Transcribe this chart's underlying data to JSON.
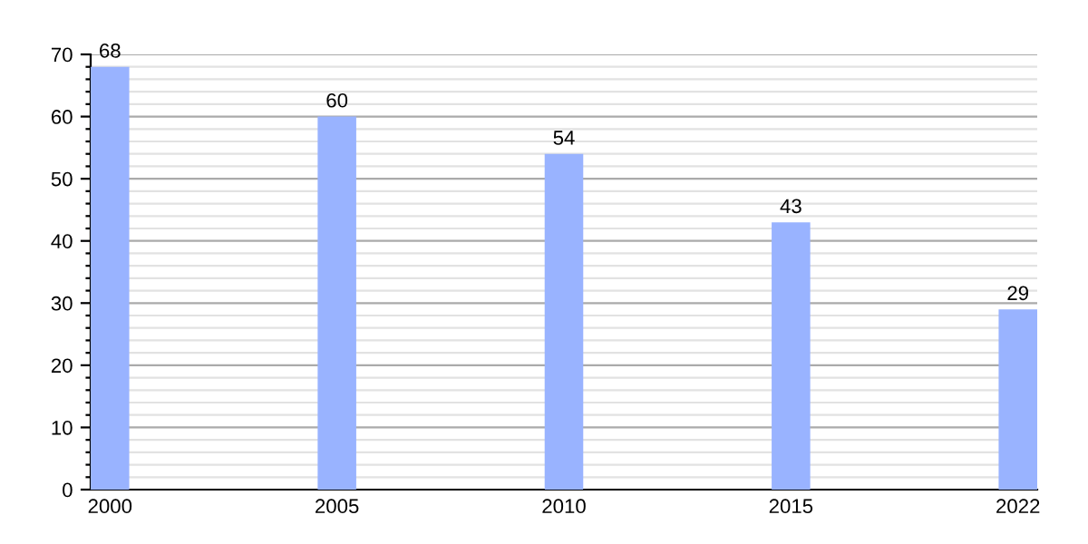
{
  "chart_data": {
    "type": "bar",
    "categories": [
      "2000",
      "2005",
      "2010",
      "2015",
      "2022"
    ],
    "values": [
      68,
      60,
      54,
      43,
      29
    ],
    "color": "#99b3ff",
    "data_labels": true,
    "ylim": [
      0,
      70
    ],
    "yticks": [
      0,
      {
        "value": 2,
        "label": null
      },
      {
        "value": 4,
        "label": null
      },
      {
        "value": 6,
        "label": null
      },
      {
        "value": 8,
        "label": null
      },
      10,
      {
        "value": 12,
        "label": null
      },
      {
        "value": 14,
        "label": null
      },
      {
        "value": 16,
        "label": null
      },
      {
        "value": 18,
        "label": null
      },
      20,
      {
        "value": 22,
        "label": null
      },
      {
        "value": 24,
        "label": null
      },
      {
        "value": 26,
        "label": null
      },
      {
        "value": 28,
        "label": null
      },
      30,
      {
        "value": 32,
        "label": null
      },
      {
        "value": 34,
        "label": null
      },
      {
        "value": 36,
        "label": null
      },
      {
        "value": 38,
        "label": null
      },
      40,
      {
        "value": 42,
        "label": null
      },
      {
        "value": 44,
        "label": null
      },
      {
        "value": 46,
        "label": null
      },
      {
        "value": 48,
        "label": null
      },
      50,
      {
        "value": 52,
        "label": null
      },
      {
        "value": 54,
        "label": null
      },
      {
        "value": 56,
        "label": null
      },
      {
        "value": 58,
        "label": null
      },
      60,
      {
        "value": 62,
        "label": null
      },
      {
        "value": 64,
        "label": null
      },
      {
        "value": 66,
        "label": null
      },
      {
        "value": 68,
        "label": null
      },
      70
    ],
    "grid": "y"
  }
}
